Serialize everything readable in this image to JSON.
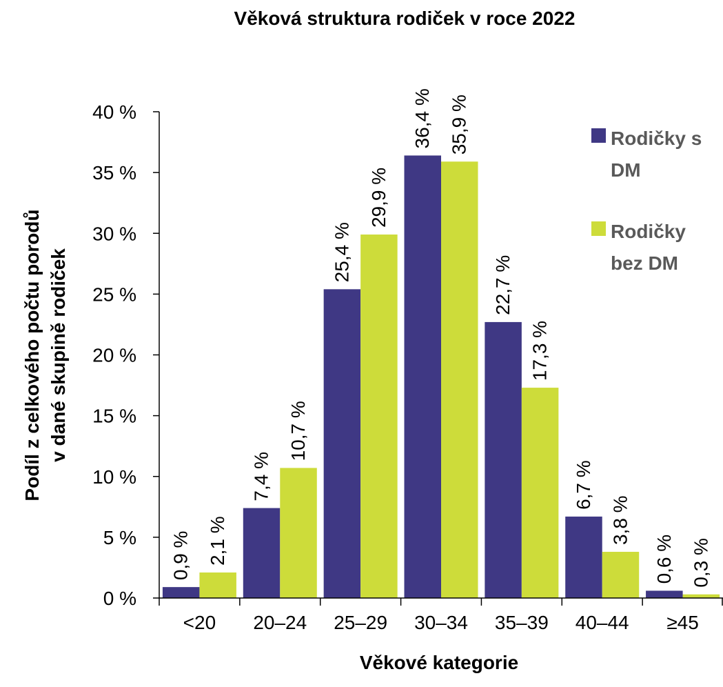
{
  "chart_data": {
    "type": "bar",
    "title": "Věková struktura rodiček v roce 2022",
    "xlabel": "Věkové kategorie",
    "ylabel_lines": [
      "Podíl z celkového počtu porodů",
      "v dané skupině rodiček"
    ],
    "categories": [
      "<20",
      "20–24",
      "25–29",
      "30–34",
      "35–39",
      "40–44",
      "≥45"
    ],
    "series": [
      {
        "name_lines": [
          "Rodičky s",
          "DM"
        ],
        "color": "#3f3884",
        "values": [
          0.9,
          7.4,
          25.4,
          36.4,
          22.7,
          6.7,
          0.6
        ],
        "labels": [
          "0,9 %",
          "7,4 %",
          "25,4 %",
          "36,4 %",
          "22,7 %",
          "6,7 %",
          "0,6 %"
        ]
      },
      {
        "name_lines": [
          "Rodičky",
          "bez DM"
        ],
        "color": "#cddc3a",
        "values": [
          2.1,
          10.7,
          29.9,
          35.9,
          17.3,
          3.8,
          0.3
        ],
        "labels": [
          "2,1 %",
          "10,7 %",
          "29,9 %",
          "35,9 %",
          "17,3 %",
          "3,8 %",
          "0,3 %"
        ]
      }
    ],
    "ylim": [
      0,
      40
    ],
    "yticks": [
      0,
      5,
      10,
      15,
      20,
      25,
      30,
      35,
      40
    ],
    "ytick_labels": [
      "0 %",
      "5 %",
      "10 %",
      "15 %",
      "20 %",
      "25 %",
      "30 %",
      "35 %",
      "40 %"
    ],
    "legend_position": "top-right",
    "grid": false
  }
}
